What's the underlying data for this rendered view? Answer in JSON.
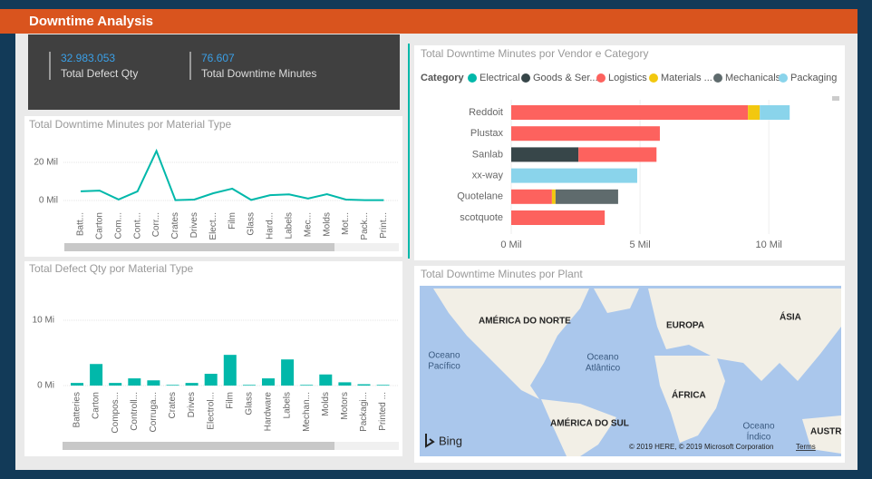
{
  "header": {
    "title": "Downtime Analysis"
  },
  "cards": [
    {
      "value": "32.983.053",
      "label": "Total Defect Qty"
    },
    {
      "value": "76.607",
      "label": "Total Downtime Minutes"
    }
  ],
  "chart_data": [
    {
      "type": "line",
      "title": "Total Downtime Minutes por Material Type",
      "color": "#01b8aa",
      "grid": true,
      "categories": [
        "Batt...",
        "Carton",
        "Com...",
        "Cont...",
        "Corr...",
        "Crates",
        "Drives",
        "Elect...",
        "Film",
        "Glass",
        "Hard...",
        "Labels",
        "Mec...",
        "Molds",
        "Mot...",
        "Pack...",
        "Print..."
      ],
      "values": [
        4800,
        5200,
        500,
        4800,
        26000,
        200,
        500,
        3800,
        6200,
        300,
        2800,
        3200,
        1000,
        3300,
        500,
        200,
        200
      ],
      "ylim": [
        0,
        30000
      ],
      "yticks": [
        {
          "value": 0,
          "label": "0 Mil"
        },
        {
          "value": 20000,
          "label": "20 Mil"
        }
      ]
    },
    {
      "type": "bar",
      "title": "Total Defect Qty por Material Type",
      "color": "#01b8aa",
      "grid": true,
      "categories": [
        "Batteries",
        "Carton",
        "Compos...",
        "Controll...",
        "Corruga...",
        "Crates",
        "Drives",
        "Electrol...",
        "Film",
        "Glass",
        "Hardware",
        "Labels",
        "Mechan...",
        "Molds",
        "Motors",
        "Packagi...",
        "Printed ..."
      ],
      "values": [
        400000,
        3300000,
        400000,
        1100000,
        800000,
        100000,
        400000,
        1800000,
        4700000,
        100000,
        1100000,
        4000000,
        100000,
        1700000,
        500000,
        200000,
        100000
      ],
      "ylim": [
        0,
        15000000
      ],
      "yticks": [
        {
          "value": 0,
          "label": "0 Mi"
        },
        {
          "value": 10000000,
          "label": "10 Mi"
        }
      ]
    },
    {
      "type": "bar",
      "orientation": "horizontal",
      "stacked": true,
      "title": "Total Downtime Minutes por Vendor e Category",
      "legend_title": "Category",
      "grid": true,
      "categories": [
        "Reddoit",
        "Plustax",
        "Sanlab",
        "xx-way",
        "Quotelane",
        "scotquote"
      ],
      "series": [
        {
          "name": "Electrical",
          "color": "#01b8aa",
          "values": [
            null,
            null,
            null,
            null,
            null,
            null
          ]
        },
        {
          "name": "Goods & Ser...",
          "color": "#374649",
          "values": [
            null,
            null,
            2610,
            null,
            null,
            null
          ]
        },
        {
          "name": "Logistics",
          "color": "#fd625e",
          "values": [
            9190,
            5770,
            3030,
            null,
            1580,
            3630
          ]
        },
        {
          "name": "Materials ...",
          "color": "#f2c80f",
          "values": [
            460,
            null,
            null,
            null,
            140,
            null
          ]
        },
        {
          "name": "Mechanicals",
          "color": "#5f6b6d",
          "values": [
            null,
            null,
            null,
            null,
            2430,
            null
          ]
        },
        {
          "name": "Packaging",
          "color": "#8ad4eb",
          "values": [
            1160,
            null,
            null,
            4890,
            null,
            null
          ]
        }
      ],
      "xlim": [
        0,
        12000
      ],
      "xticks": [
        {
          "value": 0,
          "label": "0 Mil"
        },
        {
          "value": 5000,
          "label": "5 Mil"
        },
        {
          "value": 10000,
          "label": "10 Mil"
        }
      ]
    }
  ],
  "map": {
    "title": "Total Downtime Minutes por Plant",
    "labels": [
      "AMÉRICA DO NORTE",
      "EUROPA",
      "ÁSIA",
      "Oceano",
      "Pacífico",
      "Oceano",
      "Atlântico",
      "ÁFRICA",
      "AMÉRICA DO SUL",
      "Oceano",
      "Índico",
      "AUSTR"
    ],
    "provider": "Bing",
    "copyright": "© 2019 HERE, © 2019 Microsoft Corporation",
    "terms": "Terms"
  }
}
